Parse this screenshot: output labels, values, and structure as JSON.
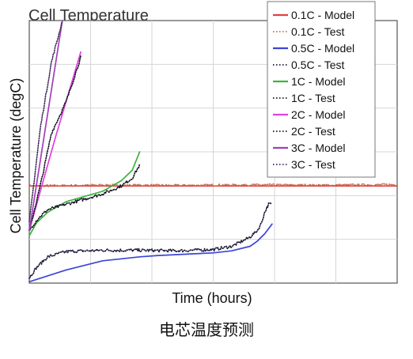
{
  "caption": "电芯温度预测",
  "chart_data": {
    "type": "line",
    "title": "Cell Temperature",
    "xlabel": "Time (hours)",
    "ylabel": "Cell Temperature (degC)",
    "xlim": [
      0,
      1
    ],
    "ylim": [
      0,
      1
    ],
    "grid": true,
    "tick_labels_shown": false,
    "legend_position": "top-right",
    "series": [
      {
        "name": "0.1C - Model",
        "color": "#e04040",
        "style": "solid",
        "x": [
          0,
          1
        ],
        "y": [
          0.37,
          0.37
        ]
      },
      {
        "name": "0.1C - Test",
        "color": "#c86a50",
        "style": "dotted",
        "noise": 0.004,
        "x": [
          0,
          0.2,
          0.4,
          0.6,
          0.8,
          1
        ],
        "y": [
          0.37,
          0.373,
          0.372,
          0.374,
          0.373,
          0.375
        ]
      },
      {
        "name": "0.5C - Model",
        "color": "#3b45d8",
        "style": "solid",
        "x": [
          0,
          0.1,
          0.2,
          0.3,
          0.35,
          0.5,
          0.55,
          0.6,
          0.62,
          0.64,
          0.66
        ],
        "y": [
          0.005,
          0.05,
          0.085,
          0.1,
          0.105,
          0.115,
          0.123,
          0.14,
          0.16,
          0.188,
          0.225
        ]
      },
      {
        "name": "0.5C - Test",
        "color": "#151535",
        "style": "dotted",
        "noise": 0.006,
        "x": [
          0,
          0.02,
          0.05,
          0.1,
          0.2,
          0.3,
          0.4,
          0.5,
          0.55,
          0.6,
          0.62,
          0.63,
          0.64,
          0.65,
          0.66
        ],
        "y": [
          0.02,
          0.06,
          0.1,
          0.12,
          0.125,
          0.125,
          0.123,
          0.128,
          0.14,
          0.175,
          0.2,
          0.225,
          0.27,
          0.3,
          0.3
        ]
      },
      {
        "name": "1C - Model",
        "color": "#3cb43c",
        "style": "solid",
        "x": [
          0,
          0.02,
          0.05,
          0.1,
          0.15,
          0.2,
          0.25,
          0.28,
          0.3
        ],
        "y": [
          0.18,
          0.23,
          0.27,
          0.31,
          0.33,
          0.35,
          0.39,
          0.43,
          0.5
        ]
      },
      {
        "name": "1C - Test",
        "color": "#101020",
        "style": "dotted",
        "noise": 0.006,
        "x": [
          0,
          0.02,
          0.05,
          0.1,
          0.15,
          0.2,
          0.25,
          0.28,
          0.3
        ],
        "y": [
          0.2,
          0.24,
          0.28,
          0.3,
          0.32,
          0.34,
          0.37,
          0.4,
          0.45
        ]
      },
      {
        "name": "2C - Model",
        "color": "#e040e0",
        "style": "solid",
        "x": [
          0,
          0.07,
          0.14
        ],
        "y": [
          0.2,
          0.55,
          0.88
        ]
      },
      {
        "name": "2C - Test",
        "color": "#101020",
        "style": "dotted",
        "noise": 0.006,
        "x": [
          0,
          0.03,
          0.06,
          0.1,
          0.14
        ],
        "y": [
          0.2,
          0.37,
          0.57,
          0.69,
          0.86
        ]
      },
      {
        "name": "3C - Model",
        "color": "#a040b8",
        "style": "solid",
        "x": [
          0,
          0.09
        ],
        "y": [
          0.2,
          1.0
        ]
      },
      {
        "name": "3C - Test",
        "color": "#402858",
        "style": "dotted",
        "noise": 0.006,
        "x": [
          0,
          0.03,
          0.06,
          0.09
        ],
        "y": [
          0.23,
          0.59,
          0.84,
          1.0
        ]
      }
    ]
  }
}
